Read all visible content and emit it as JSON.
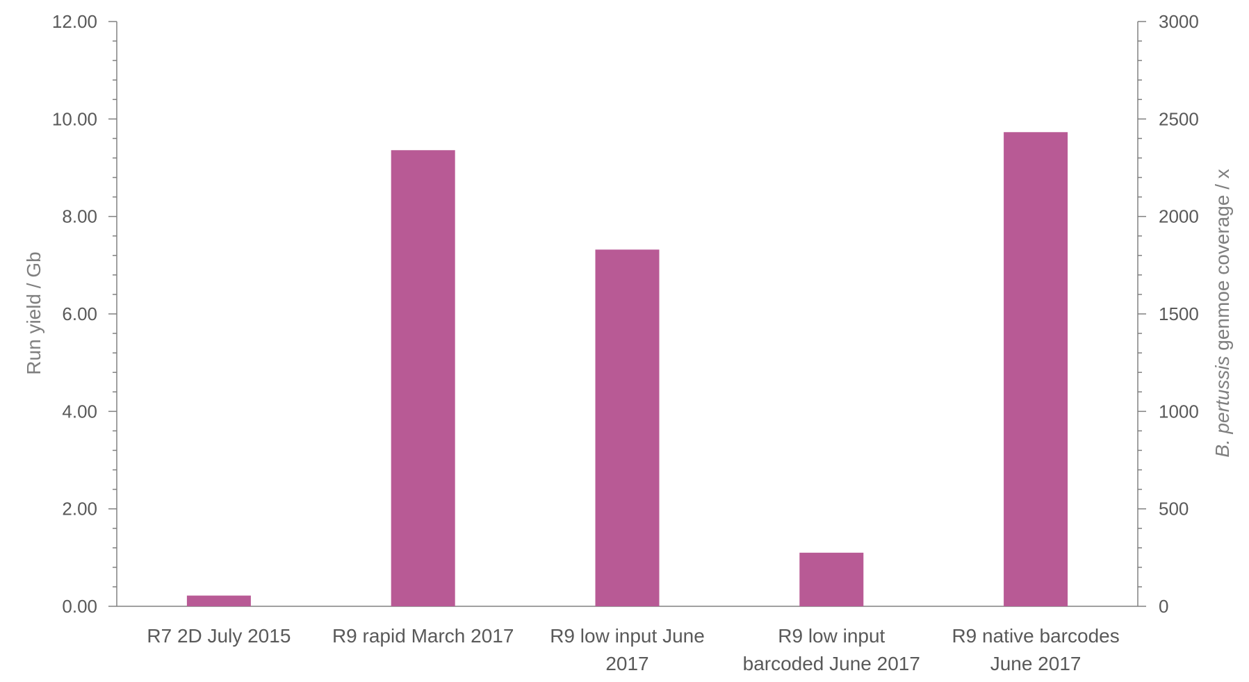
{
  "chart_data": {
    "type": "bar",
    "categories": [
      [
        "R7 2D July 2015"
      ],
      [
        "R9 rapid March 2017"
      ],
      [
        "R9 low input June",
        "2017"
      ],
      [
        "R9 low input",
        "barcoded June 2017"
      ],
      [
        "R9 native barcodes",
        "June 2017"
      ]
    ],
    "series": [
      {
        "values": [
          0.22,
          9.36,
          7.32,
          1.1,
          9.73
        ],
        "color": "#b85a95"
      }
    ],
    "ylabel": "Run yield / Gb",
    "y2label_italic": "B. pertussis",
    "y2label_rest": " genmoe coverage / x",
    "ylim": [
      0,
      12
    ],
    "y2lim": [
      0,
      3000
    ],
    "yticks": [
      "0.00",
      "2.00",
      "4.00",
      "6.00",
      "8.00",
      "10.00",
      "12.00"
    ],
    "y2ticks": [
      "0",
      "500",
      "1000",
      "1500",
      "2000",
      "2500",
      "3000"
    ],
    "grid": false,
    "legend": "none",
    "colors": {
      "axis": "#808080",
      "text": "#595959",
      "title": "#7f7f7f"
    }
  }
}
